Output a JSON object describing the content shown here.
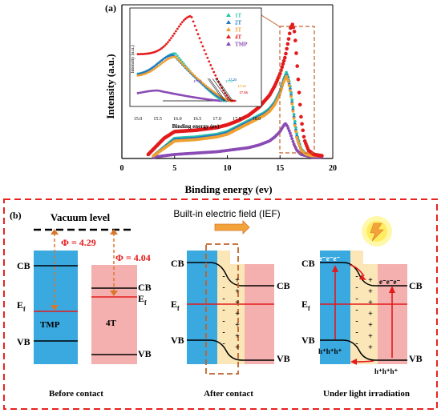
{
  "panel_a": {
    "label": "(a)",
    "chart_data": {
      "type": "scatter",
      "xlabel": "Binding energy (ev)",
      "ylabel": "Intensity (a.u.)",
      "xlim": [
        0,
        20
      ],
      "x_ticks": [
        "0",
        "5",
        "10",
        "15",
        "20"
      ],
      "legend_position": "top-right (inset)",
      "series": [
        {
          "name": "1T",
          "color": "#2ec4a6",
          "x": [
            3,
            5,
            7,
            9,
            10,
            11,
            12,
            13,
            13.5,
            14,
            14.5,
            15,
            15.3,
            15.6,
            15.8,
            16.0,
            16.2,
            16.4,
            16.6,
            17,
            17.5,
            18,
            19
          ],
          "y": [
            0.02,
            0.15,
            0.16,
            0.18,
            0.2,
            0.24,
            0.28,
            0.32,
            0.34,
            0.37,
            0.42,
            0.5,
            0.58,
            0.64,
            0.6,
            0.52,
            0.4,
            0.28,
            0.18,
            0.07,
            0.03,
            0.02,
            0.02
          ]
        },
        {
          "name": "2T",
          "color": "#1f78c8",
          "x": [
            3,
            5,
            7,
            9,
            10,
            11,
            12,
            13,
            13.5,
            14,
            14.5,
            15,
            15.3,
            15.6,
            15.8,
            16.0,
            16.2,
            16.4,
            16.6,
            17,
            17.5,
            18,
            19
          ],
          "y": [
            0.02,
            0.14,
            0.15,
            0.17,
            0.19,
            0.23,
            0.27,
            0.31,
            0.33,
            0.36,
            0.41,
            0.49,
            0.57,
            0.62,
            0.58,
            0.5,
            0.38,
            0.26,
            0.16,
            0.06,
            0.03,
            0.02,
            0.02
          ]
        },
        {
          "name": "3T",
          "color": "#f0a030",
          "x": [
            3,
            5,
            7,
            9,
            10,
            11,
            12,
            13,
            13.5,
            14,
            14.5,
            15,
            15.3,
            15.6,
            15.8,
            16.0,
            16.2,
            16.4,
            16.6,
            17,
            17.5,
            18,
            19
          ],
          "y": [
            0.02,
            0.13,
            0.14,
            0.16,
            0.18,
            0.22,
            0.26,
            0.3,
            0.32,
            0.35,
            0.4,
            0.48,
            0.56,
            0.61,
            0.57,
            0.49,
            0.37,
            0.25,
            0.15,
            0.06,
            0.03,
            0.02,
            0.02
          ]
        },
        {
          "name": "4T",
          "color": "#e31a1c",
          "x": [
            2.5,
            4,
            5,
            7,
            9,
            10,
            11,
            12,
            13,
            14,
            14.5,
            15,
            15.5,
            15.8,
            16.0,
            16.2,
            16.4,
            16.6,
            16.8,
            17.0,
            17.3,
            17.7,
            18.2,
            19
          ],
          "y": [
            0.03,
            0.15,
            0.2,
            0.21,
            0.23,
            0.25,
            0.28,
            0.32,
            0.38,
            0.47,
            0.54,
            0.63,
            0.76,
            0.88,
            0.97,
            1.0,
            0.93,
            0.72,
            0.5,
            0.3,
            0.14,
            0.06,
            0.03,
            0.02
          ]
        },
        {
          "name": "TMP",
          "color": "#8a4bb5",
          "x": [
            3,
            5,
            7,
            9,
            10,
            11,
            12,
            13,
            14,
            14.5,
            15,
            15.3,
            15.5,
            15.7,
            16.0,
            16.3,
            16.6,
            17,
            17.5,
            18,
            19
          ],
          "y": [
            0.01,
            0.03,
            0.04,
            0.05,
            0.06,
            0.07,
            0.08,
            0.1,
            0.13,
            0.16,
            0.2,
            0.24,
            0.26,
            0.24,
            0.18,
            0.11,
            0.06,
            0.03,
            0.02,
            0.01,
            0.01
          ]
        }
      ]
    },
    "inset": {
      "xlabel": "Binding energy (ev)",
      "ylabel": "Intensity (a.u.)",
      "xlim": [
        15.0,
        18.0
      ],
      "x_ticks": [
        "15.0",
        "15.5",
        "16.0",
        "16.5",
        "17.0",
        "17.5",
        "18.0"
      ],
      "cutoffs": [
        {
          "label": "17.13",
          "color": "#8a4bb5",
          "x": 17.13
        },
        {
          "label": "17.17",
          "color": "#2ec4a6",
          "x": 17.17
        },
        {
          "label": "17.25",
          "color": "#1f78c8",
          "x": 17.25
        },
        {
          "label": "17.32",
          "color": "#f0a030",
          "x": 17.32
        },
        {
          "label": "17.36",
          "color": "#e31a1c",
          "x": 17.36
        }
      ]
    }
  },
  "panel_b": {
    "label": "(b)",
    "vacuum_level": "Vacuum level",
    "phi_tmp": "Φ = 4.29",
    "phi_4t": "Φ = 4.04",
    "cb": "CB",
    "vb": "VB",
    "ef": "E",
    "ef_sub": "f",
    "tmp": "TMP",
    "t4": "4T",
    "ief": "Built-in electric field (IEF)",
    "electrons": "e⁻e⁻e⁻",
    "holes": "h⁺h⁺h⁺",
    "minus": "-",
    "plus": "+",
    "caption_1": "Before contact",
    "caption_2": "After contact",
    "caption_3": "Under light irradiation",
    "colors": {
      "blue": "#3aa9e0",
      "pink": "#f4b0ae",
      "cream": "#fbe6b8",
      "red": "#e31a1c",
      "orange": "#d9772a",
      "frame": "#e8231f"
    }
  }
}
